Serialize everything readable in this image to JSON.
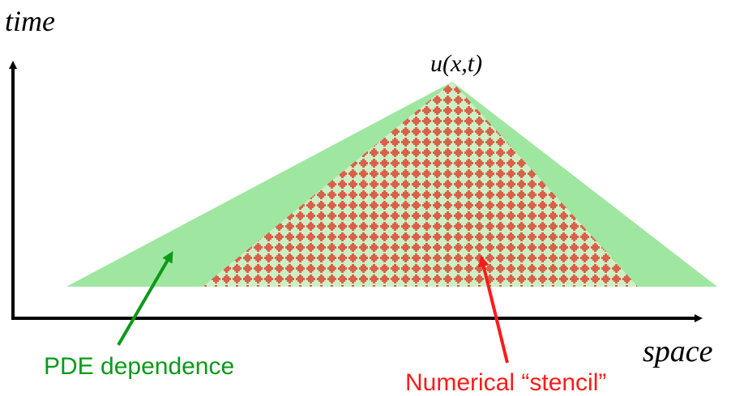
{
  "labels": {
    "time_axis": "time",
    "space_axis": "space",
    "apex_point": "u(x,t)",
    "pde_dependence": "PDE dependence",
    "numerical_stencil": "Numerical “stencil”"
  },
  "colors": {
    "pde_region": "#9fe6a0",
    "stencil_base": "#cdefc3",
    "stencil_dots": "#d9614a",
    "pde_arrow": "#0a9a1a",
    "pde_text": "#0a9a1a",
    "stencil_arrow": "#ff1a1a",
    "stencil_text": "#ff1a1a",
    "axes": "#000000"
  }
}
